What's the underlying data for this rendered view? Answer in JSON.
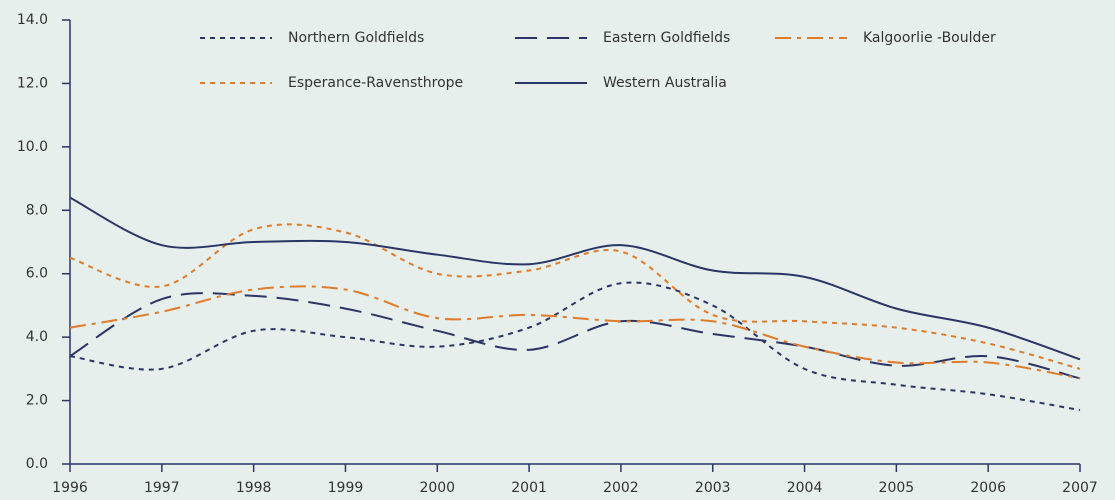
{
  "chart_data": {
    "type": "line",
    "x": [
      1996,
      1997,
      1998,
      1999,
      2000,
      2001,
      2002,
      2003,
      2004,
      2005,
      2006,
      2007
    ],
    "xlim": [
      1996,
      2007
    ],
    "xticks": [
      1996,
      1997,
      1998,
      1999,
      2000,
      2001,
      2002,
      2003,
      2004,
      2005,
      2006,
      2007
    ],
    "ylim": [
      0,
      14
    ],
    "yticks": [
      {
        "value": 0,
        "label": "0.0"
      },
      {
        "value": 2,
        "label": "2.0"
      },
      {
        "value": 4,
        "label": "4.0"
      },
      {
        "value": 6,
        "label": "6.0"
      },
      {
        "value": 8,
        "label": "8.0"
      },
      {
        "value": 10,
        "label": "10.0"
      },
      {
        "value": 12,
        "label": "12.0"
      },
      {
        "value": 14,
        "label": "14.0"
      }
    ],
    "grid": false,
    "legend": "top",
    "series": [
      {
        "name": "Northern Goldfields",
        "color": "#2b3566",
        "style": "dotted",
        "values": [
          3.4,
          3.0,
          4.2,
          4.0,
          3.7,
          4.3,
          5.7,
          5.0,
          3.0,
          2.5,
          2.2,
          1.7
        ]
      },
      {
        "name": "Eastern Goldfields",
        "color": "#2b3566",
        "style": "dashed",
        "values": [
          3.4,
          5.2,
          5.3,
          4.9,
          4.2,
          3.6,
          4.5,
          4.1,
          3.7,
          3.1,
          3.4,
          2.7
        ]
      },
      {
        "name": "Kalgoorlie -Boulder",
        "color": "#e07b2a",
        "style": "dash-dot",
        "values": [
          4.3,
          4.8,
          5.5,
          5.5,
          4.6,
          4.7,
          4.5,
          4.5,
          3.7,
          3.2,
          3.2,
          2.7
        ]
      },
      {
        "name": "Esperance-Ravensthrope",
        "color": "#e07b2a",
        "style": "dotted",
        "values": [
          6.5,
          5.6,
          7.4,
          7.3,
          6.0,
          6.1,
          6.7,
          4.7,
          4.5,
          4.3,
          3.8,
          3.0
        ]
      },
      {
        "name": "Western Australia",
        "color": "#2b3566",
        "style": "solid",
        "values": [
          8.4,
          6.9,
          7.0,
          7.0,
          6.6,
          6.3,
          6.9,
          6.1,
          5.9,
          4.9,
          4.3,
          3.3
        ]
      }
    ]
  }
}
